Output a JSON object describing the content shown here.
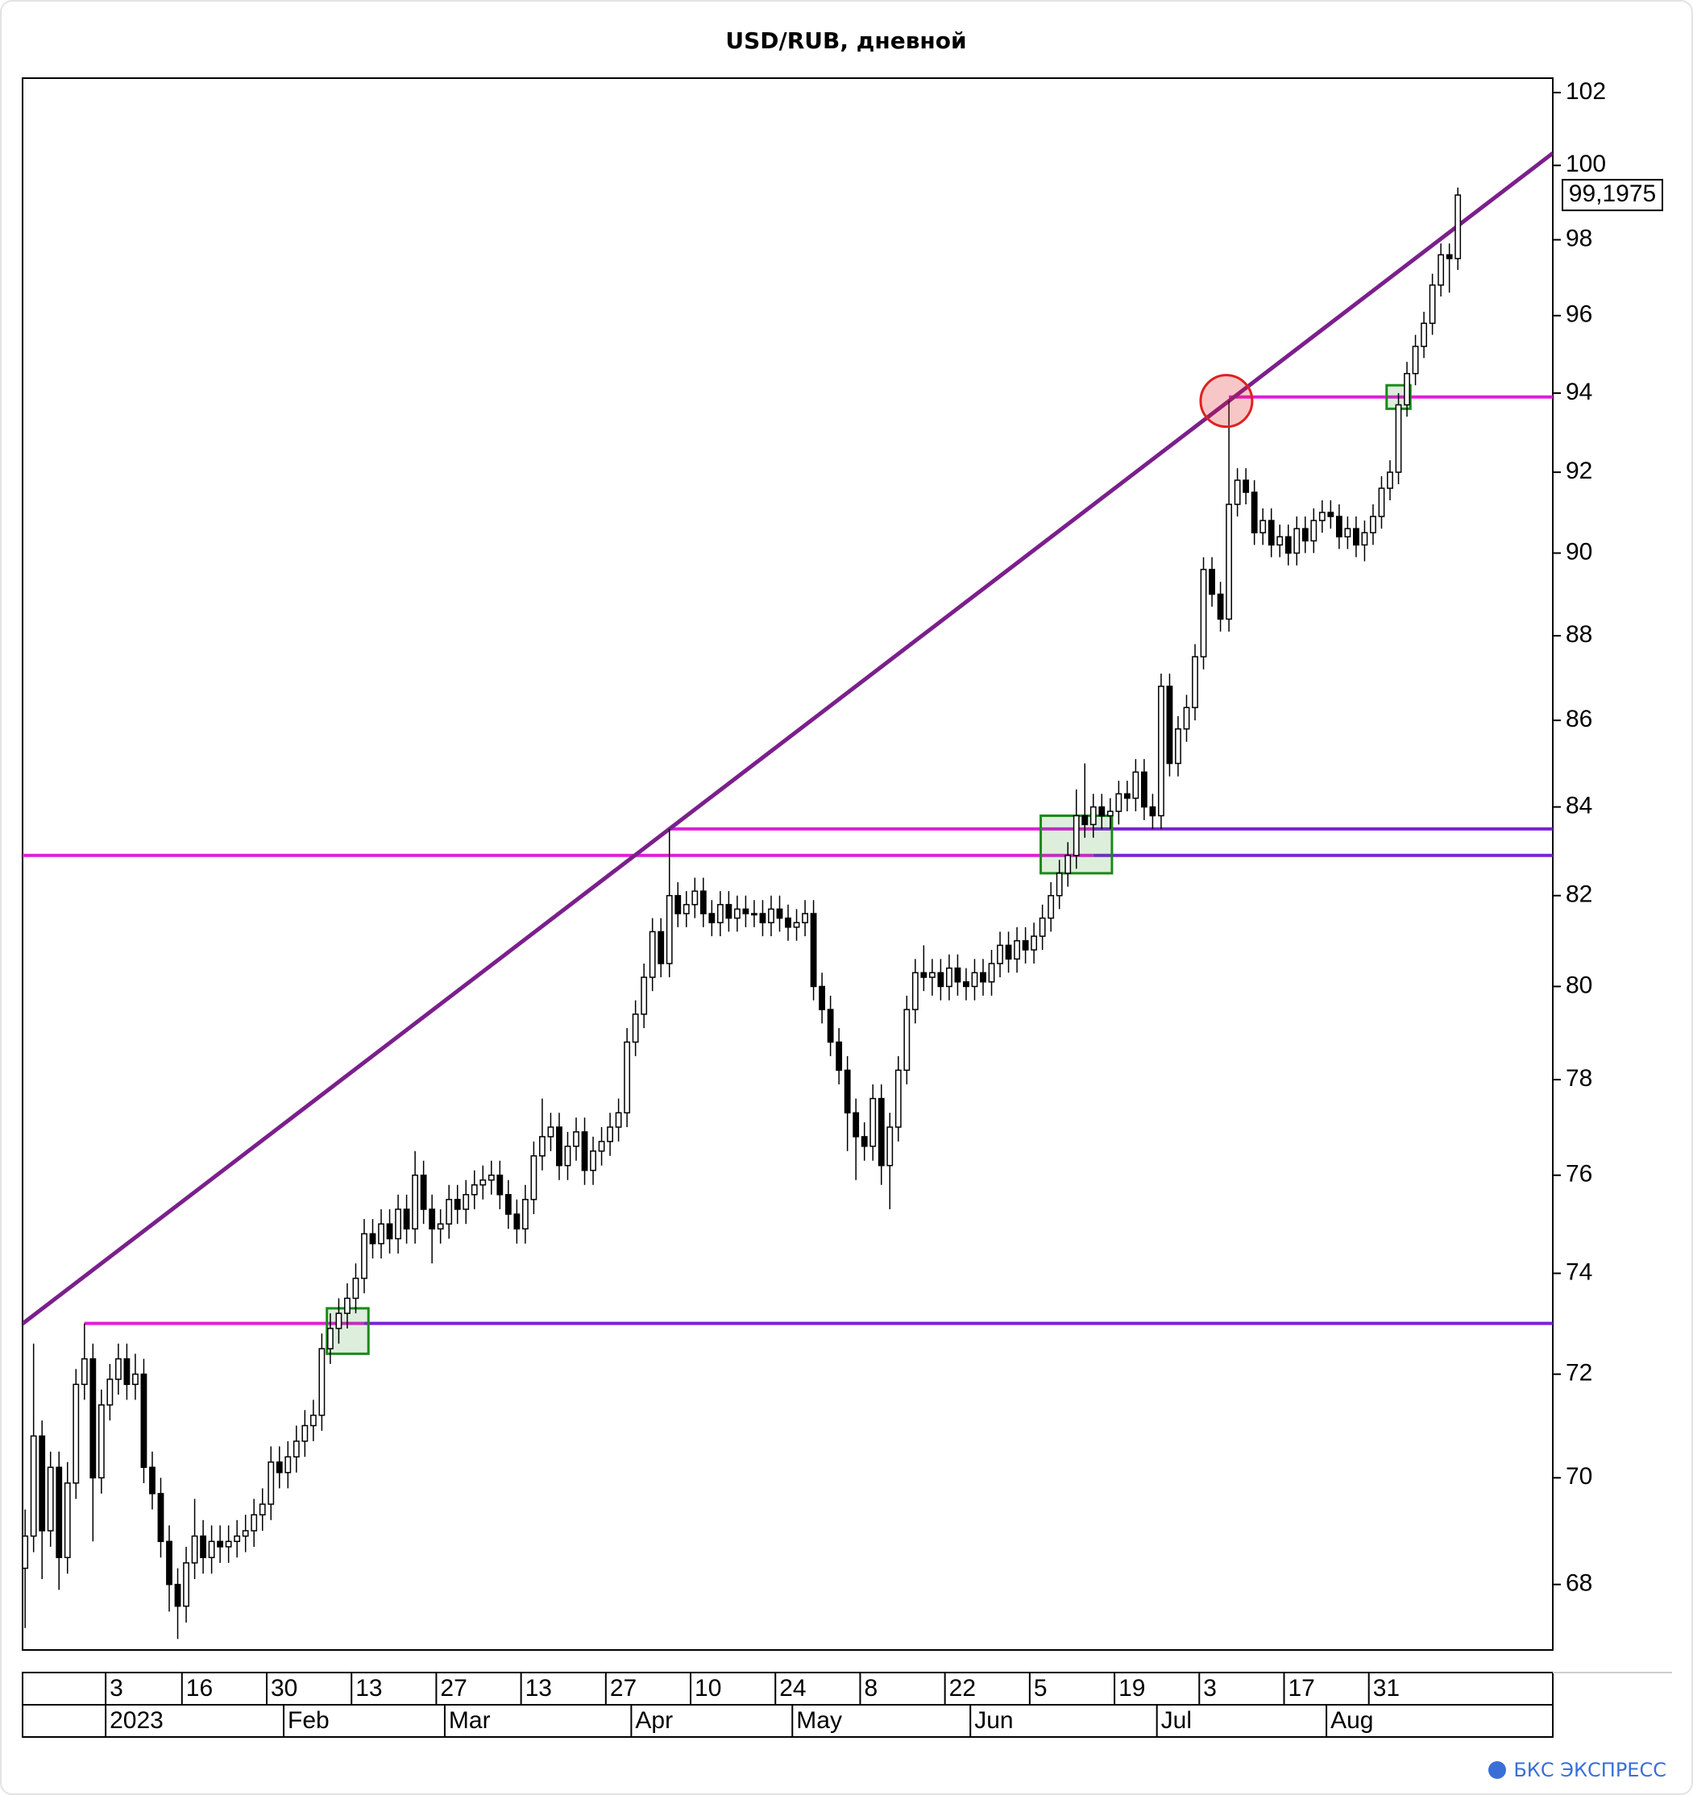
{
  "chart_data": {
    "type": "candlestick",
    "title": "USD/RUB, дневной",
    "watermark": "БКС ЭКСПРЕСС",
    "log": true,
    "ylim": [
      66.8,
      102.4
    ],
    "yticks": [
      68,
      70,
      72,
      74,
      76,
      78,
      80,
      82,
      84,
      86,
      88,
      90,
      92,
      94,
      96,
      98,
      100,
      102
    ],
    "xlim": [
      -0.3,
      180.2
    ],
    "up_color": "#ffffff",
    "down_color": "#000000",
    "categories": [
      null,
      null,
      null,
      null,
      null,
      null,
      null,
      null,
      null,
      null,
      "3",
      null,
      null,
      null,
      null,
      null,
      null,
      null,
      null,
      "16",
      null,
      null,
      null,
      null,
      null,
      null,
      null,
      null,
      null,
      "30",
      null,
      null,
      null,
      null,
      null,
      null,
      null,
      null,
      null,
      "13",
      null,
      null,
      null,
      null,
      null,
      null,
      null,
      null,
      null,
      "27",
      null,
      null,
      null,
      null,
      null,
      null,
      null,
      null,
      null,
      "13",
      null,
      null,
      null,
      null,
      null,
      null,
      null,
      null,
      null,
      "27",
      null,
      null,
      null,
      null,
      null,
      null,
      null,
      null,
      null,
      "10",
      null,
      null,
      null,
      null,
      null,
      null,
      null,
      null,
      null,
      "24",
      null,
      null,
      null,
      null,
      null,
      null,
      null,
      null,
      null,
      "8",
      null,
      null,
      null,
      null,
      null,
      null,
      null,
      null,
      null,
      "22",
      null,
      null,
      null,
      null,
      null,
      null,
      null,
      null,
      null,
      "5",
      null,
      null,
      null,
      null,
      null,
      null,
      null,
      null,
      null,
      "19",
      null,
      null,
      null,
      null,
      null,
      null,
      null,
      null,
      null,
      "3",
      null,
      null,
      null,
      null,
      null,
      null,
      null,
      null,
      null,
      "17",
      null,
      null,
      null,
      null,
      null,
      null,
      null,
      null,
      null,
      "31",
      null,
      null,
      null,
      null,
      null,
      null,
      null,
      null,
      null,
      null
    ],
    "month_labels": [
      null,
      null,
      null,
      null,
      null,
      null,
      null,
      null,
      null,
      null,
      "2023",
      null,
      null,
      null,
      null,
      null,
      null,
      null,
      null,
      null,
      null,
      null,
      null,
      null,
      null,
      null,
      null,
      null,
      null,
      null,
      null,
      "Feb",
      null,
      null,
      null,
      null,
      null,
      null,
      null,
      null,
      null,
      null,
      null,
      null,
      null,
      null,
      null,
      null,
      null,
      null,
      "Mar",
      null,
      null,
      null,
      null,
      null,
      null,
      null,
      null,
      null,
      null,
      null,
      null,
      null,
      null,
      null,
      null,
      null,
      null,
      null,
      null,
      null,
      "Apr",
      null,
      null,
      null,
      null,
      null,
      null,
      null,
      null,
      null,
      null,
      null,
      null,
      null,
      null,
      null,
      null,
      null,
      null,
      "May",
      null,
      null,
      null,
      null,
      null,
      null,
      null,
      null,
      null,
      null,
      null,
      null,
      null,
      null,
      null,
      null,
      null,
      null,
      null,
      null,
      "Jun",
      null,
      null,
      null,
      null,
      null,
      null,
      null,
      null,
      null,
      null,
      null,
      null,
      null,
      null,
      null,
      null,
      null,
      null,
      null,
      null,
      null,
      "Jul",
      null,
      null,
      null,
      null,
      null,
      null,
      null,
      null,
      null,
      null,
      null,
      null,
      null,
      null,
      null,
      null,
      null,
      null,
      null,
      "Aug",
      null,
      null,
      null,
      null,
      null,
      null,
      null,
      null,
      null
    ],
    "values": [
      [
        68.3,
        69.4,
        67.2,
        68.9
      ],
      [
        68.9,
        72.6,
        68.6,
        70.8
      ],
      [
        70.8,
        71.1,
        68.1,
        69.0
      ],
      [
        69.0,
        70.5,
        68.7,
        70.2
      ],
      [
        70.2,
        70.5,
        67.9,
        68.5
      ],
      [
        68.5,
        70.3,
        68.2,
        69.9
      ],
      [
        69.9,
        72.1,
        69.6,
        71.8
      ],
      [
        71.8,
        73.0,
        71.5,
        72.3
      ],
      [
        72.3,
        72.6,
        68.8,
        70.0
      ],
      [
        70.0,
        71.7,
        69.7,
        71.4
      ],
      [
        71.4,
        72.2,
        71.1,
        71.9
      ],
      [
        71.9,
        72.6,
        71.6,
        72.3
      ],
      [
        72.3,
        72.6,
        71.5,
        71.8
      ],
      [
        71.8,
        72.4,
        71.5,
        72.0
      ],
      [
        72.0,
        72.3,
        69.9,
        70.2
      ],
      [
        70.2,
        70.5,
        69.4,
        69.7
      ],
      [
        69.7,
        70.0,
        68.5,
        68.8
      ],
      [
        68.8,
        69.1,
        67.5,
        68.0
      ],
      [
        68.0,
        68.3,
        67.0,
        67.6
      ],
      [
        67.6,
        68.7,
        67.3,
        68.4
      ],
      [
        68.4,
        69.6,
        68.1,
        68.9
      ],
      [
        68.9,
        69.2,
        68.2,
        68.5
      ],
      [
        68.5,
        69.1,
        68.2,
        68.8
      ],
      [
        68.8,
        69.1,
        68.4,
        68.7
      ],
      [
        68.7,
        69.1,
        68.4,
        68.8
      ],
      [
        68.8,
        69.2,
        68.5,
        68.9
      ],
      [
        68.9,
        69.3,
        68.6,
        69.0
      ],
      [
        69.0,
        69.6,
        68.7,
        69.3
      ],
      [
        69.3,
        69.8,
        69.0,
        69.5
      ],
      [
        69.5,
        70.6,
        69.2,
        70.3
      ],
      [
        70.3,
        70.6,
        69.8,
        70.1
      ],
      [
        70.1,
        70.7,
        69.8,
        70.4
      ],
      [
        70.4,
        71.0,
        70.1,
        70.7
      ],
      [
        70.7,
        71.3,
        70.4,
        71.0
      ],
      [
        71.0,
        71.5,
        70.7,
        71.2
      ],
      [
        71.2,
        72.8,
        70.9,
        72.5
      ],
      [
        72.5,
        73.2,
        72.2,
        72.9
      ],
      [
        72.9,
        73.5,
        72.6,
        73.2
      ],
      [
        73.2,
        73.8,
        72.9,
        73.5
      ],
      [
        73.5,
        74.2,
        73.2,
        73.9
      ],
      [
        73.9,
        75.1,
        73.6,
        74.8
      ],
      [
        74.8,
        75.1,
        74.3,
        74.6
      ],
      [
        74.6,
        75.3,
        74.3,
        75.0
      ],
      [
        75.0,
        75.3,
        74.4,
        74.7
      ],
      [
        74.7,
        75.6,
        74.4,
        75.3
      ],
      [
        75.3,
        75.6,
        74.6,
        74.9
      ],
      [
        74.9,
        76.5,
        74.6,
        76.0
      ],
      [
        76.0,
        76.3,
        75.0,
        75.3
      ],
      [
        75.3,
        75.6,
        74.2,
        74.9
      ],
      [
        74.9,
        75.3,
        74.6,
        75.0
      ],
      [
        75.0,
        75.8,
        74.7,
        75.5
      ],
      [
        75.5,
        75.8,
        75.0,
        75.3
      ],
      [
        75.3,
        75.9,
        75.0,
        75.6
      ],
      [
        75.6,
        76.1,
        75.3,
        75.8
      ],
      [
        75.8,
        76.2,
        75.5,
        75.9
      ],
      [
        75.9,
        76.3,
        75.6,
        76.0
      ],
      [
        76.0,
        76.3,
        75.3,
        75.6
      ],
      [
        75.6,
        75.9,
        74.9,
        75.2
      ],
      [
        75.2,
        75.5,
        74.6,
        74.9
      ],
      [
        74.9,
        75.8,
        74.6,
        75.5
      ],
      [
        75.5,
        76.7,
        75.2,
        76.4
      ],
      [
        76.4,
        77.6,
        76.1,
        76.8
      ],
      [
        76.8,
        77.3,
        76.5,
        77.0
      ],
      [
        77.0,
        77.3,
        75.9,
        76.2
      ],
      [
        76.2,
        76.9,
        75.9,
        76.6
      ],
      [
        76.6,
        77.2,
        76.3,
        76.9
      ],
      [
        76.9,
        77.2,
        75.8,
        76.1
      ],
      [
        76.1,
        76.8,
        75.8,
        76.5
      ],
      [
        76.5,
        77.0,
        76.2,
        76.7
      ],
      [
        76.7,
        77.3,
        76.4,
        77.0
      ],
      [
        77.0,
        77.6,
        76.7,
        77.3
      ],
      [
        77.3,
        79.1,
        77.0,
        78.8
      ],
      [
        78.8,
        79.7,
        78.5,
        79.4
      ],
      [
        79.4,
        80.5,
        79.1,
        80.2
      ],
      [
        80.2,
        81.5,
        79.9,
        81.2
      ],
      [
        81.2,
        81.5,
        80.2,
        80.5
      ],
      [
        80.5,
        83.5,
        80.2,
        82.0
      ],
      [
        82.0,
        82.3,
        81.3,
        81.6
      ],
      [
        81.6,
        82.1,
        81.3,
        81.8
      ],
      [
        81.8,
        82.4,
        81.5,
        82.1
      ],
      [
        82.1,
        82.4,
        81.3,
        81.6
      ],
      [
        81.6,
        81.9,
        81.1,
        81.4
      ],
      [
        81.4,
        82.1,
        81.1,
        81.8
      ],
      [
        81.8,
        82.1,
        81.2,
        81.5
      ],
      [
        81.5,
        82.0,
        81.2,
        81.7
      ],
      [
        81.7,
        82.0,
        81.3,
        81.6
      ],
      [
        81.6,
        81.9,
        81.3,
        81.6
      ],
      [
        81.6,
        81.9,
        81.1,
        81.4
      ],
      [
        81.4,
        82.0,
        81.1,
        81.7
      ],
      [
        81.7,
        82.0,
        81.2,
        81.5
      ],
      [
        81.5,
        81.8,
        81.0,
        81.3
      ],
      [
        81.3,
        81.7,
        81.0,
        81.4
      ],
      [
        81.4,
        81.9,
        81.1,
        81.6
      ],
      [
        81.6,
        81.9,
        79.7,
        80.0
      ],
      [
        80.0,
        80.3,
        79.2,
        79.5
      ],
      [
        79.5,
        79.8,
        78.5,
        78.8
      ],
      [
        78.8,
        79.1,
        77.9,
        78.2
      ],
      [
        78.2,
        78.5,
        76.5,
        77.3
      ],
      [
        77.3,
        77.6,
        75.9,
        76.8
      ],
      [
        76.8,
        77.1,
        76.3,
        76.6
      ],
      [
        76.6,
        77.9,
        76.3,
        77.6
      ],
      [
        77.6,
        77.9,
        75.8,
        76.2
      ],
      [
        76.2,
        77.3,
        75.3,
        77.0
      ],
      [
        77.0,
        78.5,
        76.7,
        78.2
      ],
      [
        78.2,
        79.8,
        77.9,
        79.5
      ],
      [
        79.5,
        80.6,
        79.2,
        80.3
      ],
      [
        80.3,
        80.9,
        79.9,
        80.2
      ],
      [
        80.2,
        80.6,
        79.8,
        80.3
      ],
      [
        80.3,
        80.6,
        79.7,
        80.0
      ],
      [
        80.0,
        80.7,
        79.7,
        80.4
      ],
      [
        80.4,
        80.7,
        79.8,
        80.1
      ],
      [
        80.1,
        80.4,
        79.7,
        80.0
      ],
      [
        80.0,
        80.6,
        79.7,
        80.3
      ],
      [
        80.3,
        80.6,
        79.8,
        80.1
      ],
      [
        80.1,
        80.8,
        79.8,
        80.5
      ],
      [
        80.5,
        81.2,
        80.2,
        80.9
      ],
      [
        80.9,
        81.2,
        80.3,
        80.6
      ],
      [
        80.6,
        81.3,
        80.3,
        81.0
      ],
      [
        81.0,
        81.3,
        80.5,
        80.8
      ],
      [
        80.8,
        81.4,
        80.5,
        81.1
      ],
      [
        81.1,
        81.8,
        80.8,
        81.5
      ],
      [
        81.5,
        82.3,
        81.2,
        82.0
      ],
      [
        82.0,
        82.8,
        81.7,
        82.5
      ],
      [
        82.5,
        83.2,
        82.2,
        82.9
      ],
      [
        82.9,
        84.4,
        82.6,
        83.8
      ],
      [
        83.8,
        85.0,
        83.3,
        83.6
      ],
      [
        83.6,
        84.3,
        83.3,
        84.0
      ],
      [
        84.0,
        84.3,
        83.5,
        83.8
      ],
      [
        83.8,
        84.2,
        83.5,
        83.9
      ],
      [
        83.9,
        84.6,
        83.6,
        84.3
      ],
      [
        84.3,
        84.6,
        83.9,
        84.2
      ],
      [
        84.2,
        85.1,
        83.9,
        84.8
      ],
      [
        84.8,
        85.1,
        83.7,
        84.0
      ],
      [
        84.0,
        84.3,
        83.5,
        83.8
      ],
      [
        83.8,
        87.1,
        83.5,
        86.8
      ],
      [
        86.8,
        87.1,
        84.7,
        85.0
      ],
      [
        85.0,
        86.1,
        84.7,
        85.8
      ],
      [
        85.8,
        86.6,
        85.5,
        86.3
      ],
      [
        86.3,
        87.8,
        86.0,
        87.5
      ],
      [
        87.5,
        89.9,
        87.2,
        89.6
      ],
      [
        89.6,
        89.9,
        88.7,
        89.0
      ],
      [
        89.0,
        89.3,
        88.1,
        88.4
      ],
      [
        88.4,
        93.8,
        88.1,
        91.2
      ],
      [
        91.2,
        92.1,
        90.9,
        91.8
      ],
      [
        91.8,
        92.1,
        91.2,
        91.5
      ],
      [
        91.5,
        91.8,
        90.2,
        90.5
      ],
      [
        90.5,
        91.1,
        90.2,
        90.8
      ],
      [
        90.8,
        91.1,
        89.9,
        90.2
      ],
      [
        90.2,
        90.7,
        89.9,
        90.4
      ],
      [
        90.4,
        90.7,
        89.7,
        90.0
      ],
      [
        90.0,
        90.9,
        89.7,
        90.6
      ],
      [
        90.6,
        90.9,
        90.0,
        90.3
      ],
      [
        90.3,
        91.1,
        90.0,
        90.8
      ],
      [
        90.8,
        91.3,
        90.5,
        91.0
      ],
      [
        91.0,
        91.3,
        90.6,
        90.9
      ],
      [
        90.9,
        91.2,
        90.1,
        90.4
      ],
      [
        90.4,
        90.9,
        90.1,
        90.6
      ],
      [
        90.6,
        90.9,
        89.9,
        90.2
      ],
      [
        90.2,
        90.8,
        89.8,
        90.5
      ],
      [
        90.5,
        91.2,
        90.2,
        90.9
      ],
      [
        90.9,
        91.9,
        90.6,
        91.6
      ],
      [
        91.6,
        92.3,
        91.3,
        92.0
      ],
      [
        92.0,
        94.0,
        91.7,
        93.7
      ],
      [
        93.7,
        94.8,
        93.4,
        94.5
      ],
      [
        94.5,
        95.5,
        94.2,
        95.2
      ],
      [
        95.2,
        96.1,
        94.9,
        95.8
      ],
      [
        95.8,
        97.1,
        95.5,
        96.8
      ],
      [
        96.8,
        97.9,
        96.5,
        97.6
      ],
      [
        97.6,
        97.9,
        96.6,
        97.5
      ],
      [
        97.5,
        99.4,
        97.2,
        99.1975
      ]
    ],
    "last_label": "99,1975",
    "trendline": {
      "points": [
        [
          76,
          83.5
        ],
        [
          142,
          93.8
        ]
      ],
      "color": "#7b1f8c"
    },
    "hlines": [
      {
        "y": 82.9,
        "x": [
          -0.3,
          126
        ],
        "color": "#e01ed8"
      },
      {
        "y": 82.9,
        "x": [
          126,
          180.2
        ],
        "color": "#7a22d6"
      },
      {
        "y": 83.5,
        "x": [
          76,
          126
        ],
        "color": "#e01ed8"
      },
      {
        "y": 83.5,
        "x": [
          126,
          180.2
        ],
        "color": "#7a22d6"
      },
      {
        "y": 73.0,
        "x": [
          7,
          40
        ],
        "color": "#e01ed8"
      },
      {
        "y": 73.0,
        "x": [
          40,
          180.2
        ],
        "color": "#7a22d6"
      },
      {
        "y": 93.9,
        "x": [
          142,
          180.2
        ],
        "color": "#e01ed8"
      }
    ],
    "boxes": [
      {
        "x": [
          35.6,
          40.5
        ],
        "y": [
          72.4,
          73.3
        ]
      },
      {
        "x": [
          119.8,
          128.2
        ],
        "y": [
          82.5,
          83.8
        ]
      },
      {
        "x": [
          160.6,
          163.4
        ],
        "y": [
          93.6,
          94.2
        ]
      }
    ],
    "box_color": "#1a8a1a",
    "circle": {
      "center": [
        141.7,
        93.8
      ],
      "color": "#e02020"
    }
  }
}
